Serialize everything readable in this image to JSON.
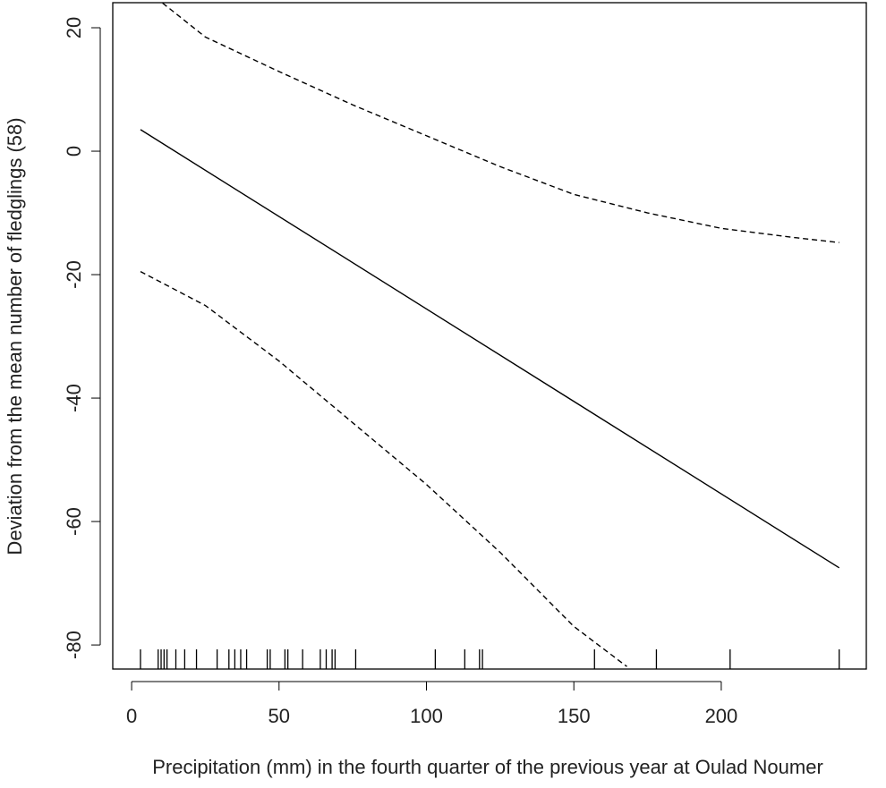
{
  "chart_data": {
    "type": "line",
    "xlabel": "Precipitation (mm) in the fourth quarter of the previous year at Oulad Noumer",
    "ylabel": "Deviation from the mean number of fledglings (58)",
    "xlim": [
      -6.4,
      249.2
    ],
    "ylim": [
      -83.9,
      24.06
    ],
    "xticks": [
      0,
      50,
      100,
      150,
      200
    ],
    "yticks": [
      -80,
      -60,
      -40,
      -20,
      0,
      20
    ],
    "series": [
      {
        "color": "#000000",
        "linestyle": "solid",
        "x": [
          3,
          240
        ],
        "values": [
          3.5,
          -67.5
        ]
      },
      {
        "color": "#000000",
        "linestyle": "dashed",
        "x": [
          10.5,
          25,
          50,
          75,
          100,
          125,
          150,
          175,
          200,
          225,
          240
        ],
        "values": [
          24,
          18.5,
          12.9,
          7.5,
          2.5,
          -2.5,
          -7,
          -10,
          -12.5,
          -14,
          -14.8
        ]
      },
      {
        "color": "#000000",
        "linestyle": "dashed",
        "x": [
          3,
          25,
          50,
          75,
          100,
          125,
          150,
          168
        ],
        "values": [
          -19.5,
          -25,
          -34,
          -44,
          -54,
          -65,
          -77,
          -83.5
        ]
      }
    ],
    "rug": [
      3,
      9,
      10,
      11,
      12,
      15,
      18,
      22,
      29,
      33,
      35,
      37,
      39,
      46,
      47,
      52,
      53,
      58,
      64,
      66,
      68,
      69,
      76,
      103,
      113,
      118,
      119,
      157,
      178,
      203,
      240
    ]
  }
}
